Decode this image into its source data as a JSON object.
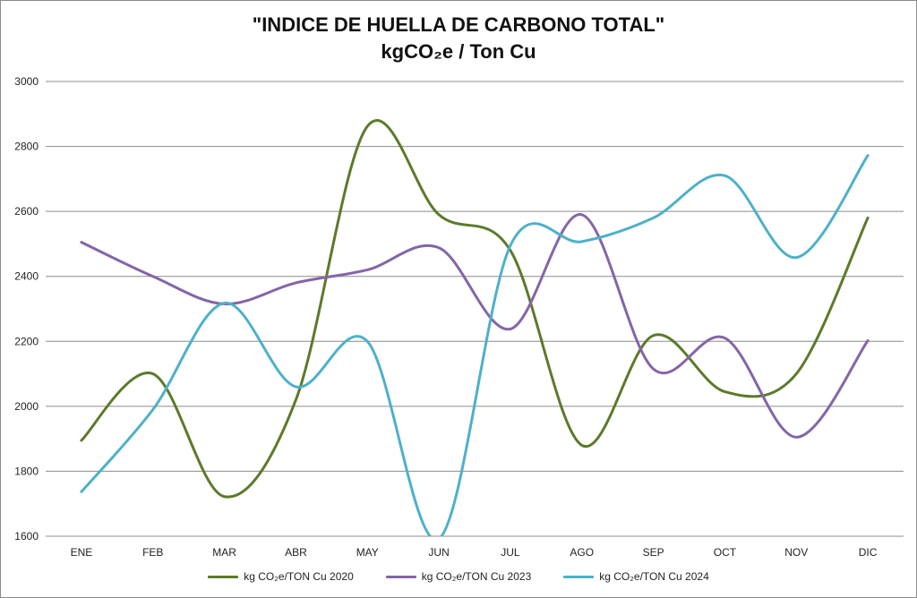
{
  "chart_data": {
    "type": "line",
    "title": "\"INDICE DE HUELLA DE CARBONO TOTAL\"",
    "subtitle": "kgCO₂e / Ton Cu",
    "categories": [
      "ENE",
      "FEB",
      "MAR",
      "ABR",
      "MAY",
      "JUN",
      "JUL",
      "AGO",
      "SEP",
      "OCT",
      "NOV",
      "DIC"
    ],
    "ylim": [
      1600,
      3000
    ],
    "yticks": [
      1600,
      1800,
      2000,
      2200,
      2400,
      2600,
      2800,
      3000
    ],
    "grid": true,
    "legend_position": "bottom",
    "smooth": true,
    "series": [
      {
        "name": "kg CO₂e/TON Cu 2020",
        "color": "#5b7a2b",
        "values": [
          1895,
          2100,
          1722,
          2020,
          2862,
          2590,
          2480,
          1880,
          2218,
          2045,
          2100,
          2580
        ]
      },
      {
        "name": "kg CO₂e/TON Cu 2023",
        "color": "#8465a8",
        "values": [
          2505,
          2400,
          2315,
          2380,
          2420,
          2488,
          2238,
          2590,
          2115,
          2210,
          1905,
          2202
        ]
      },
      {
        "name": "kg CO₂e/TON Cu 2024",
        "color": "#4eb0c9",
        "values": [
          1737,
          1990,
          2318,
          2060,
          2200,
          1592,
          2495,
          2507,
          2580,
          2710,
          2458,
          2772
        ]
      }
    ]
  }
}
